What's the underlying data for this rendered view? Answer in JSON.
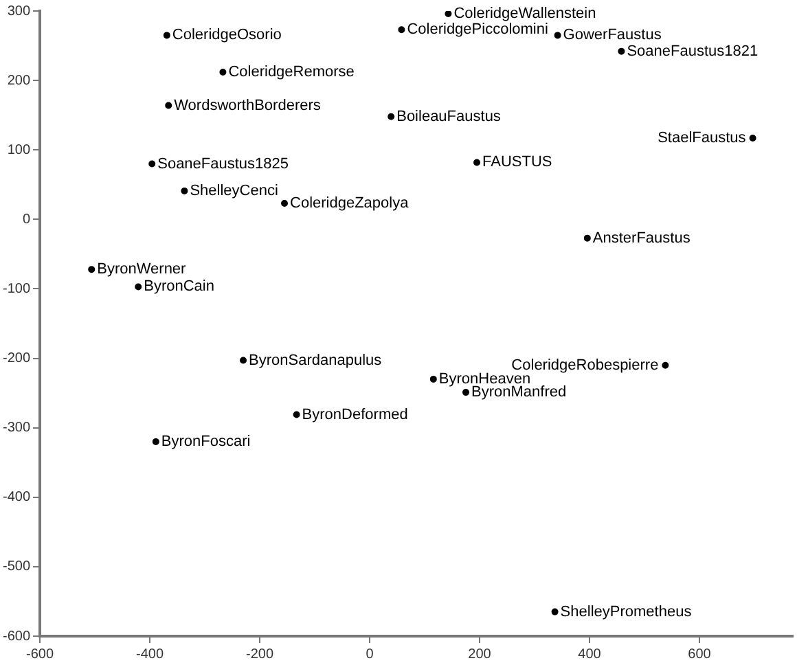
{
  "chart_data": {
    "type": "scatter",
    "marker": "circle",
    "grid": false,
    "legend": false,
    "xlim": [
      -600,
      770
    ],
    "ylim": [
      -600,
      300
    ],
    "xticks": [
      -600,
      -400,
      -200,
      0,
      200,
      400,
      600
    ],
    "yticks": [
      -600,
      -500,
      -400,
      -300,
      -200,
      -100,
      0,
      100,
      200,
      300
    ],
    "series": [
      {
        "color": "#000000",
        "x": [
          -369,
          -267,
          -366,
          -396,
          -337,
          -155,
          -506,
          -421,
          -230,
          -133,
          -389,
          143,
          58,
          342,
          458,
          39,
          697,
          195,
          396,
          538,
          116,
          175,
          337
        ],
        "values": [
          265,
          212,
          164,
          80,
          41,
          23,
          -72,
          -97,
          -203,
          -281,
          -320,
          296,
          273,
          265,
          242,
          148,
          117,
          82,
          -27,
          -210,
          -230,
          -249,
          -565
        ]
      }
    ],
    "annotations": [
      {
        "text": "ColeridgeOsorio",
        "x": -369,
        "y": 265
      },
      {
        "text": "ColeridgeRemorse",
        "x": -267,
        "y": 212
      },
      {
        "text": "WordsworthBorderers",
        "x": -366,
        "y": 164
      },
      {
        "text": "SoaneFaustus1825",
        "x": -396,
        "y": 80
      },
      {
        "text": "ShelleyCenci",
        "x": -337,
        "y": 41
      },
      {
        "text": "ColeridgeZapolya",
        "x": -155,
        "y": 23
      },
      {
        "text": "ByronWerner",
        "x": -506,
        "y": -72
      },
      {
        "text": "ByronCain",
        "x": -421,
        "y": -97
      },
      {
        "text": "ByronSardanapulus",
        "x": -230,
        "y": -203
      },
      {
        "text": "ByronDeformed",
        "x": -133,
        "y": -281
      },
      {
        "text": "ByronFoscari",
        "x": -389,
        "y": -320
      },
      {
        "text": "ColeridgeWallenstein",
        "x": 143,
        "y": 296
      },
      {
        "text": "ColeridgePiccolomini",
        "x": 58,
        "y": 273
      },
      {
        "text": "GowerFaustus",
        "x": 342,
        "y": 265
      },
      {
        "text": "SoaneFaustus1821",
        "x": 458,
        "y": 242
      },
      {
        "text": "BoileauFaustus",
        "x": 39,
        "y": 148
      },
      {
        "text": "StaelFaustus",
        "x": 697,
        "y": 117
      },
      {
        "text": "FAUSTUS",
        "x": 195,
        "y": 82
      },
      {
        "text": "AnsterFaustus",
        "x": 396,
        "y": -27
      },
      {
        "text": "ColeridgeRobespierre",
        "x": 538,
        "y": -210
      },
      {
        "text": "ByronHeaven",
        "x": 116,
        "y": -230
      },
      {
        "text": "ByronManfred",
        "x": 175,
        "y": -249
      },
      {
        "text": "ShelleyPrometheus",
        "x": 337,
        "y": -565
      }
    ]
  }
}
